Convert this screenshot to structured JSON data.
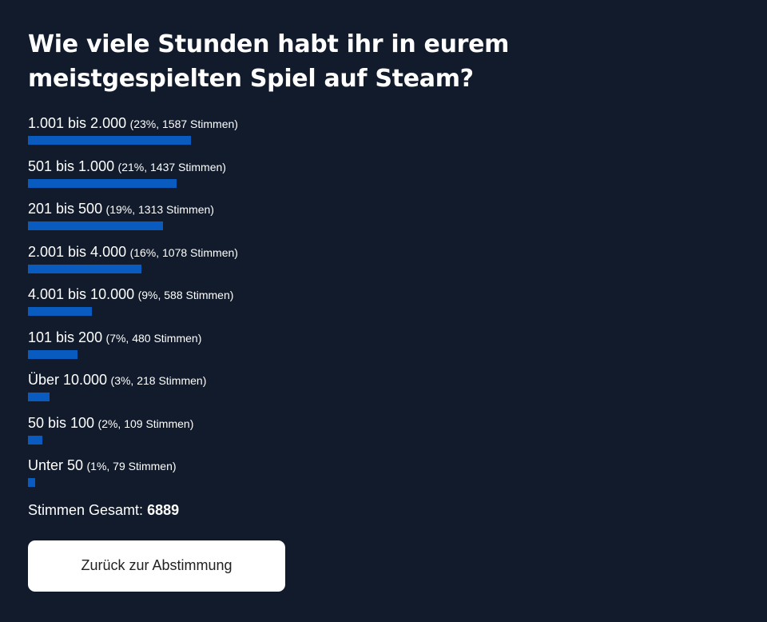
{
  "poll": {
    "question": "Wie viele Stunden habt ihr in eurem meistgespielten Spiel auf Steam?",
    "options": [
      {
        "label": "1.001 bis 2.000",
        "meta": "(23%, 1587 Stimmen)",
        "percent": 23
      },
      {
        "label": "501 bis 1.000",
        "meta": "(21%, 1437 Stimmen)",
        "percent": 21
      },
      {
        "label": "201 bis 500",
        "meta": "(19%, 1313 Stimmen)",
        "percent": 19
      },
      {
        "label": "2.001 bis 4.000",
        "meta": "(16%, 1078 Stimmen)",
        "percent": 16
      },
      {
        "label": "4.001 bis 10.000",
        "meta": "(9%, 588 Stimmen)",
        "percent": 9
      },
      {
        "label": "101 bis 200",
        "meta": "(7%, 480 Stimmen)",
        "percent": 7
      },
      {
        "label": "Über 10.000",
        "meta": "(3%, 218 Stimmen)",
        "percent": 3
      },
      {
        "label": "50 bis 100",
        "meta": "(2%, 109 Stimmen)",
        "percent": 2
      },
      {
        "label": "Unter 50",
        "meta": "(1%, 79 Stimmen)",
        "percent": 1
      }
    ],
    "total_label": "Stimmen Gesamt:",
    "total_value": "6889",
    "back_button_label": "Zurück zur Abstimmung"
  },
  "colors": {
    "background": "#111b2b",
    "bar": "#0a5bbf",
    "button_bg": "#ffffff"
  }
}
